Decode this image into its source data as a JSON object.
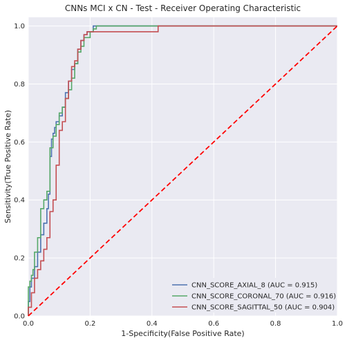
{
  "chart_data": {
    "type": "line",
    "title": "CNNs MCI x CN - Test - Receiver Operating Characteristic",
    "xlabel": "1-Specificity(False Positive Rate)",
    "ylabel": "Sensitivity(True Positive Rate)",
    "xlim": [
      0,
      1
    ],
    "ylim": [
      0,
      1.03
    ],
    "xticks": [
      "0.0",
      "0.2",
      "0.4",
      "0.6",
      "0.8",
      "1.0"
    ],
    "yticks": [
      "0.0",
      "0.2",
      "0.4",
      "0.6",
      "0.8",
      "1.0"
    ],
    "grid": true,
    "legend_position": "lower-right",
    "series": [
      {
        "name": "CNN_SCORE_AXIAL_8 (AUC = 0.915)",
        "color": "#4c72b0",
        "x": [
          0.0,
          0.0,
          0.005,
          0.005,
          0.01,
          0.01,
          0.02,
          0.02,
          0.03,
          0.03,
          0.04,
          0.04,
          0.05,
          0.05,
          0.06,
          0.06,
          0.065,
          0.065,
          0.07,
          0.07,
          0.075,
          0.075,
          0.08,
          0.08,
          0.085,
          0.085,
          0.09,
          0.09,
          0.1,
          0.1,
          0.11,
          0.11,
          0.12,
          0.12,
          0.13,
          0.13,
          0.14,
          0.14,
          0.15,
          0.15,
          0.16,
          0.16,
          0.17,
          0.17,
          0.18,
          0.18,
          0.19,
          0.19,
          0.21,
          0.21,
          1.0
        ],
        "y": [
          0.0,
          0.05,
          0.05,
          0.1,
          0.1,
          0.13,
          0.13,
          0.17,
          0.17,
          0.22,
          0.22,
          0.28,
          0.28,
          0.32,
          0.32,
          0.37,
          0.37,
          0.42,
          0.42,
          0.55,
          0.55,
          0.61,
          0.61,
          0.63,
          0.63,
          0.65,
          0.65,
          0.67,
          0.67,
          0.69,
          0.69,
          0.72,
          0.72,
          0.77,
          0.77,
          0.81,
          0.81,
          0.85,
          0.85,
          0.87,
          0.87,
          0.92,
          0.92,
          0.95,
          0.95,
          0.97,
          0.97,
          0.98,
          0.98,
          1.0,
          1.0
        ]
      },
      {
        "name": "CNN_SCORE_CORONAL_70 (AUC = 0.916)",
        "color": "#55a868",
        "x": [
          0.0,
          0.0,
          0.005,
          0.005,
          0.01,
          0.01,
          0.015,
          0.015,
          0.02,
          0.02,
          0.03,
          0.03,
          0.04,
          0.04,
          0.05,
          0.05,
          0.06,
          0.06,
          0.07,
          0.07,
          0.08,
          0.08,
          0.09,
          0.09,
          0.1,
          0.1,
          0.11,
          0.11,
          0.12,
          0.12,
          0.13,
          0.13,
          0.14,
          0.14,
          0.15,
          0.15,
          0.16,
          0.16,
          0.17,
          0.17,
          0.18,
          0.18,
          0.2,
          0.2,
          0.21,
          0.21,
          0.22,
          0.22,
          1.0
        ],
        "y": [
          0.0,
          0.1,
          0.1,
          0.12,
          0.12,
          0.14,
          0.14,
          0.16,
          0.16,
          0.22,
          0.22,
          0.27,
          0.27,
          0.37,
          0.37,
          0.4,
          0.4,
          0.43,
          0.43,
          0.58,
          0.58,
          0.62,
          0.62,
          0.66,
          0.66,
          0.7,
          0.7,
          0.72,
          0.72,
          0.75,
          0.75,
          0.78,
          0.78,
          0.82,
          0.82,
          0.87,
          0.87,
          0.91,
          0.91,
          0.93,
          0.93,
          0.96,
          0.96,
          0.98,
          0.98,
          0.99,
          0.99,
          1.0,
          1.0
        ]
      },
      {
        "name": "CNN_SCORE_SAGITTAL_50 (AUC = 0.904)",
        "color": "#c44e52",
        "x": [
          0.0,
          0.0,
          0.01,
          0.01,
          0.02,
          0.02,
          0.03,
          0.03,
          0.04,
          0.04,
          0.05,
          0.05,
          0.06,
          0.06,
          0.07,
          0.07,
          0.08,
          0.08,
          0.09,
          0.09,
          0.1,
          0.1,
          0.11,
          0.11,
          0.12,
          0.12,
          0.13,
          0.13,
          0.14,
          0.14,
          0.15,
          0.15,
          0.16,
          0.16,
          0.17,
          0.17,
          0.18,
          0.18,
          0.19,
          0.19,
          0.42,
          0.42,
          1.0
        ],
        "y": [
          0.0,
          0.03,
          0.03,
          0.08,
          0.08,
          0.13,
          0.13,
          0.16,
          0.16,
          0.19,
          0.19,
          0.23,
          0.23,
          0.27,
          0.27,
          0.36,
          0.36,
          0.4,
          0.4,
          0.52,
          0.52,
          0.64,
          0.64,
          0.67,
          0.67,
          0.75,
          0.75,
          0.81,
          0.81,
          0.86,
          0.86,
          0.88,
          0.88,
          0.92,
          0.92,
          0.95,
          0.95,
          0.97,
          0.97,
          0.98,
          0.98,
          1.0,
          1.0
        ]
      },
      {
        "name": "",
        "color": "#ff0000",
        "style": "dashed",
        "x": [
          0,
          1
        ],
        "y": [
          0,
          1
        ]
      }
    ]
  }
}
